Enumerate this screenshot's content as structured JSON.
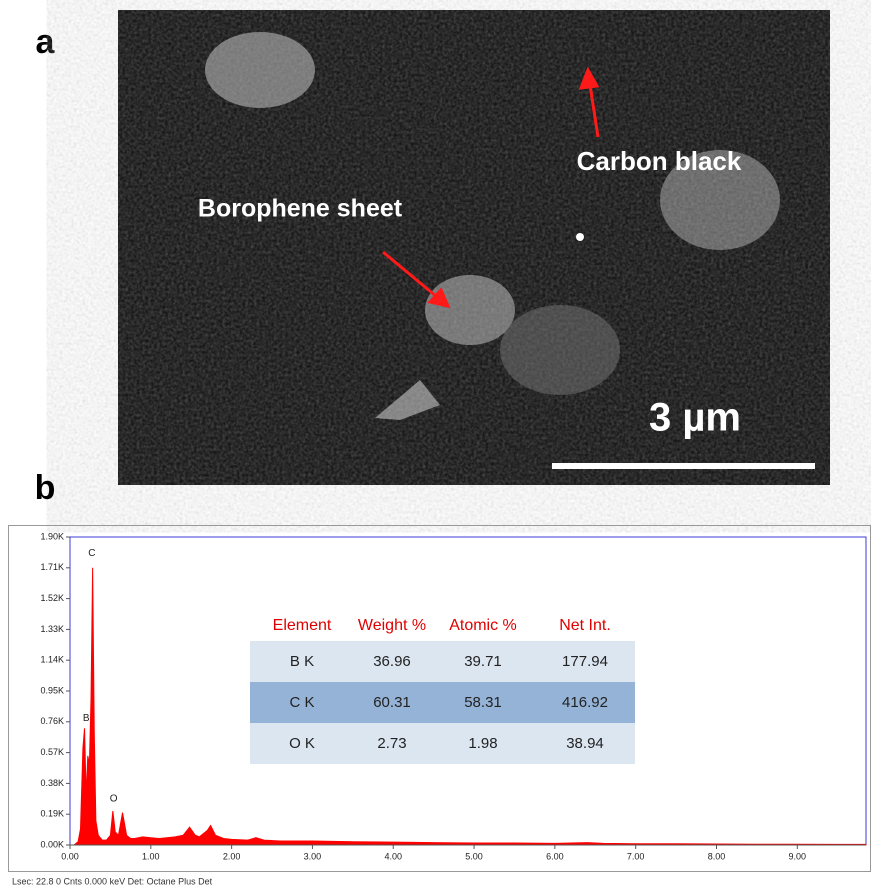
{
  "panel_a": {
    "label": "a",
    "annotations": [
      "Carbon black",
      "Borophene sheet"
    ],
    "scale_bar": "3 µm"
  },
  "panel_b": {
    "label": "b"
  },
  "chart_data": {
    "type": "area",
    "color": "#ff0000",
    "x": [
      0.0,
      0.05,
      0.1,
      0.13,
      0.16,
      0.18,
      0.2,
      0.22,
      0.24,
      0.26,
      0.28,
      0.3,
      0.32,
      0.35,
      0.4,
      0.45,
      0.5,
      0.53,
      0.56,
      0.6,
      0.65,
      0.7,
      0.75,
      0.8,
      0.9,
      1.0,
      1.1,
      1.2,
      1.3,
      1.4,
      1.48,
      1.55,
      1.6,
      1.7,
      1.74,
      1.8,
      1.9,
      2.0,
      2.2,
      2.3,
      2.4,
      2.6,
      3.0,
      3.5,
      4.0,
      4.5,
      5.0,
      5.5,
      6.0,
      6.4,
      6.6,
      7.0,
      7.5,
      8.0,
      8.5,
      9.0,
      9.5,
      9.85
    ],
    "values": [
      0,
      0,
      20,
      100,
      600,
      720,
      300,
      550,
      500,
      900,
      1710,
      700,
      150,
      60,
      30,
      30,
      60,
      210,
      80,
      60,
      200,
      60,
      40,
      40,
      50,
      45,
      40,
      45,
      50,
      60,
      110,
      60,
      50,
      90,
      120,
      60,
      40,
      35,
      30,
      45,
      30,
      25,
      25,
      20,
      18,
      15,
      12,
      12,
      10,
      15,
      10,
      8,
      8,
      6,
      5,
      5,
      4,
      4
    ],
    "xlim": [
      0,
      9.85
    ],
    "ylim": [
      0,
      1900
    ],
    "xticks": [
      {
        "value": 0,
        "label": "0.00"
      },
      {
        "value": 1,
        "label": "1.00"
      },
      {
        "value": 2,
        "label": "2.00"
      },
      {
        "value": 3,
        "label": "3.00"
      },
      {
        "value": 4,
        "label": "4.00"
      },
      {
        "value": 5,
        "label": "5.00"
      },
      {
        "value": 6,
        "label": "6.00"
      },
      {
        "value": 7,
        "label": "7.00"
      },
      {
        "value": 8,
        "label": "8.00"
      },
      {
        "value": 9,
        "label": "9.00"
      }
    ],
    "yticks": [
      {
        "value": 0,
        "label": "0.00K"
      },
      {
        "value": 190,
        "label": "0.19K"
      },
      {
        "value": 380,
        "label": "0.38K"
      },
      {
        "value": 570,
        "label": "0.57K"
      },
      {
        "value": 760,
        "label": "0.76K"
      },
      {
        "value": 950,
        "label": "0.95K"
      },
      {
        "value": 1140,
        "label": "1.14K"
      },
      {
        "value": 1330,
        "label": "1.33K"
      },
      {
        "value": 1520,
        "label": "1.52K"
      },
      {
        "value": 1710,
        "label": "1.71K"
      },
      {
        "value": 1900,
        "label": "1.90K"
      }
    ],
    "annotations": [
      {
        "text": "C",
        "x": 0.27,
        "y": 1800
      },
      {
        "text": "B",
        "x": 0.2,
        "y": 780
      },
      {
        "text": "O",
        "x": 0.54,
        "y": 285
      }
    ]
  },
  "table": {
    "header": [
      "Element",
      "Weight %",
      "Atomic %",
      "Net Int."
    ],
    "rows": [
      [
        "B K",
        "36.96",
        "39.71",
        "177.94"
      ],
      [
        "C K",
        "60.31",
        "58.31",
        "416.92"
      ],
      [
        "O K",
        "2.73",
        "1.98",
        "38.94"
      ]
    ]
  },
  "footer": "Lsec: 22.8 0 Cnts  0.000 keV Det: Octane Plus Det"
}
